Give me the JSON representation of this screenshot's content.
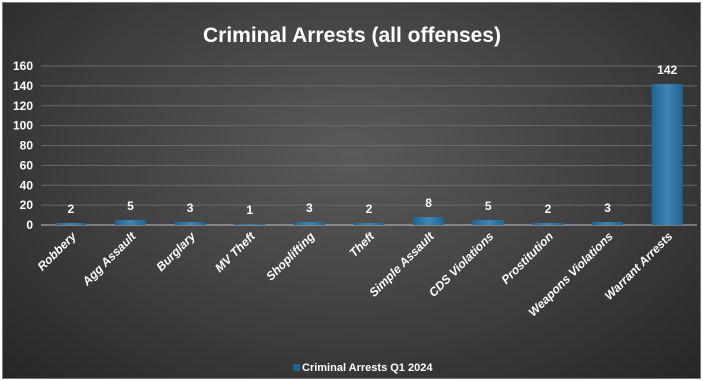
{
  "chart_data": {
    "type": "bar",
    "title": "Criminal Arrests (all offenses)",
    "categories": [
      "Robbery",
      "Agg Assault",
      "Burglary",
      "MV Theft",
      "Shoplifting",
      "Theft",
      "Simple Assault",
      "CDS Violations",
      "Prostitution",
      "Weapons Violations",
      "Warrant Arrests"
    ],
    "series": [
      {
        "name": "Criminal Arrests Q1 2024",
        "values": [
          2,
          5,
          3,
          1,
          3,
          2,
          8,
          5,
          2,
          3,
          142
        ]
      }
    ],
    "ylim": [
      0,
      160
    ],
    "yticks": [
      0,
      20,
      40,
      60,
      80,
      100,
      120,
      140,
      160
    ],
    "grid": true,
    "legend": "bottom",
    "data_labels": true,
    "colors": {
      "bar": "#1f6391",
      "bar_light": "#3d86b5",
      "background": "#3f3f3f",
      "text": "#ffffff"
    }
  }
}
